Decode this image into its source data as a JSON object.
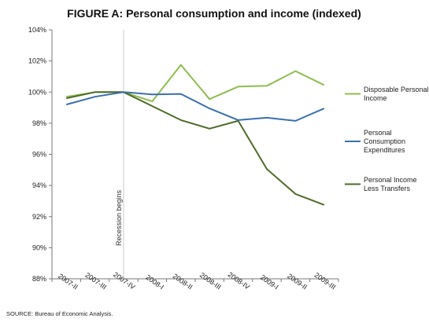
{
  "chart_data": {
    "type": "line",
    "title": "FIGURE A: Personal consumption and income (indexed)",
    "xlabel": "",
    "ylabel": "",
    "categories": [
      "2007-II",
      "2007-III",
      "2007-IV",
      "2008-I",
      "2008-II",
      "2008-III",
      "2008-IV",
      "2009-I",
      "2009-II",
      "2009-III"
    ],
    "y_ticks": [
      "88%",
      "90%",
      "92%",
      "94%",
      "96%",
      "98%",
      "100%",
      "102%",
      "104%"
    ],
    "ylim": [
      88,
      104
    ],
    "grid": false,
    "legend_position": "right",
    "series": [
      {
        "name": "Disposable Personal Income",
        "color": "#8fbd4f",
        "values": [
          99.7,
          100.0,
          100.0,
          99.4,
          101.75,
          99.55,
          100.35,
          100.4,
          101.35,
          100.45
        ]
      },
      {
        "name": "Personal Consumption Expenditures",
        "color": "#3b6fb0",
        "values": [
          99.2,
          99.7,
          100.0,
          99.85,
          99.88,
          98.95,
          98.2,
          98.35,
          98.15,
          98.95
        ]
      },
      {
        "name": "Personal Income Less Transfers",
        "color": "#4e6b28",
        "values": [
          99.6,
          100.0,
          100.0,
          99.1,
          98.2,
          97.65,
          98.15,
          95.05,
          93.45,
          92.75
        ]
      }
    ],
    "legend_lines": [
      [
        "Disposable Personal",
        "Income"
      ],
      [
        "Personal",
        "Consumption",
        "Expenditures"
      ],
      [
        "Personal Income",
        "Less Transfers"
      ]
    ],
    "annotation": {
      "text": "Recession begins",
      "at_category": "2007-IV"
    },
    "source": "SOURCE: Bureau of Economic Analysis."
  }
}
